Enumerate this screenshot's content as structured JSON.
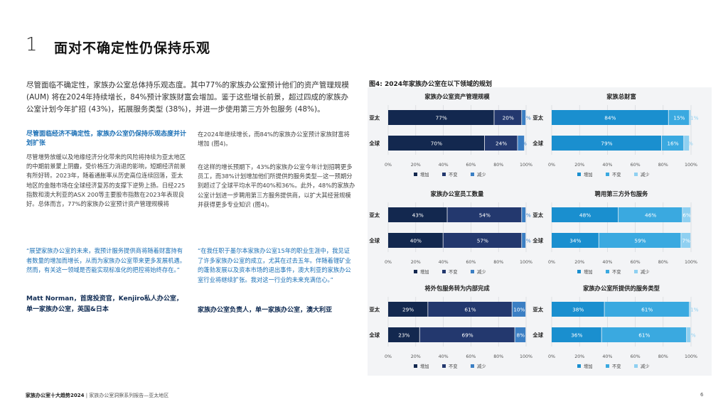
{
  "section_number": "1",
  "title": "面对不确定性仍保持乐观",
  "intro": "尽管面临不确定性，家族办公室总体持乐观态度。其中77%的家族办公室预计他们的资产管理规模 (AUM) 将在2024年持续增长，84%预计家族财富会增加。鉴于这些增长前景，超过四成的家族办公室计划今年扩招 (43%)，拓展服务类型 (38%)，并进一步使用第三方外包服务 (48%)。",
  "left_col": {
    "heading": "尽管面临经济不确定性，家族办公室仍保持乐观态度并计划扩张",
    "body": "尽管增势放缓以及地缘经济分化带来的风险将持续为亚太地区的中期前景蒙上阴霾，受价格压力消退的影响，短期经济前景有所好转。2023年，随着通胀率从历史高位连续回落，亚太地区的金融市场在全球经济复苏的支撑下逆势上扬。日经225指数和澳大利亚的ASX 200等主要股市指数在2023年表现良好。总体而言，77%的家族办公室预计资产管理规模将",
    "quote": "“展望家族办公室的未来，我预计服务提供商将随着财富持有者数量的增加而增长，从而为家族办公室带来更多发展机遇。然而，有关这一领域是否能实现标准化的把控将始终存在。”",
    "attribution": "Matt Norman，首席投资官，Kenjiro私人办公室，单一家族办公室，英国&日本"
  },
  "mid_col": {
    "para1": "在2024年继续增长，而84%的家族办公室预计家族财富将增加 (图4)。",
    "para2": "在这样的增长预期下，43%的家族办公室今年计划招聘更多员工，而38%计划增加他们所提供的服务类型—这一预期分别超过了全球平均水平的40%和36%。此外，48%的家族办公室计划进一步聘用第三方服务提供商，以扩大其经营规模并获得更多专业知识 (图4)。",
    "quote": "“在我任职于墨尔本家族办公室15年的职业生涯中，我见证了许多家族办公室的成立，尤其在过去五年。伴随着锂矿业的蓬勃发展以及资本市场的退出事件，澳大利亚的家族办公室行业将继续扩张。我对这一行业的未来充满信心。”",
    "attribution": "家族办公室负责人，单一家族办公室，澳大利亚"
  },
  "figure_title": "图4:   2024年家族办公室在以下领域的规划",
  "colors": {
    "dark_increase": "#13284f",
    "dark_nochange": "#23386e",
    "dark_decrease": "#3b7fc4",
    "light_increase": "#1a8fcf",
    "light_nochange": "#3aa9e0",
    "light_decrease": "#8fd0f1",
    "accent": "#1a6fb5"
  },
  "chart_data": [
    {
      "type": "bar",
      "stacked": true,
      "orientation": "horizontal",
      "title": "家族办公室资产管理规模",
      "palette": "dark",
      "categories": [
        "亚太",
        "全球"
      ],
      "legend": [
        "增加",
        "不变",
        "减少"
      ],
      "xlim": [
        0,
        100
      ],
      "xticks": [
        "0%",
        "20%",
        "40%",
        "60%",
        "80%",
        "100%"
      ],
      "series": [
        {
          "name": "增加",
          "values": [
            77,
            70
          ]
        },
        {
          "name": "不变",
          "values": [
            20,
            24
          ]
        },
        {
          "name": "减少",
          "values": [
            3,
            5
          ]
        }
      ]
    },
    {
      "type": "bar",
      "stacked": true,
      "orientation": "horizontal",
      "title": "家族总财富",
      "palette": "light",
      "categories": [
        "亚太",
        "全球"
      ],
      "legend": [
        "增加",
        "不变",
        "减少"
      ],
      "xlim": [
        0,
        100
      ],
      "xticks": [
        "0%",
        "20%",
        "40%",
        "60%",
        "80%",
        "100%"
      ],
      "series": [
        {
          "name": "增加",
          "values": [
            84,
            79
          ]
        },
        {
          "name": "不变",
          "values": [
            15,
            16
          ]
        },
        {
          "name": "减少",
          "values": [
            1,
            4
          ]
        }
      ]
    },
    {
      "type": "bar",
      "stacked": true,
      "orientation": "horizontal",
      "title": "家族办公室员工数量",
      "palette": "dark",
      "categories": [
        "亚太",
        "全球"
      ],
      "legend": [
        "增加",
        "不变",
        "减少"
      ],
      "xlim": [
        0,
        100
      ],
      "xticks": [
        "0%",
        "20%",
        "40%",
        "60%",
        "80%",
        "100%"
      ],
      "series": [
        {
          "name": "增加",
          "values": [
            43,
            40
          ]
        },
        {
          "name": "不变",
          "values": [
            54,
            57
          ]
        },
        {
          "name": "减少",
          "values": [
            3,
            3
          ]
        }
      ]
    },
    {
      "type": "bar",
      "stacked": true,
      "orientation": "horizontal",
      "title": "聘用第三方外包服务",
      "palette": "light",
      "categories": [
        "亚太",
        "全球"
      ],
      "legend": [
        "增加",
        "不变",
        "减少"
      ],
      "xlim": [
        0,
        100
      ],
      "xticks": [
        "0%",
        "20%",
        "40%",
        "60%",
        "80%",
        "100%"
      ],
      "series": [
        {
          "name": "增加",
          "values": [
            48,
            34
          ]
        },
        {
          "name": "不变",
          "values": [
            46,
            59
          ]
        },
        {
          "name": "减少",
          "values": [
            6,
            7
          ]
        }
      ]
    },
    {
      "type": "bar",
      "stacked": true,
      "orientation": "horizontal",
      "title": "将外包服务转为内部完成",
      "palette": "dark",
      "categories": [
        "亚太",
        "全球"
      ],
      "legend": [
        "增加",
        "不变",
        "减少"
      ],
      "xlim": [
        0,
        100
      ],
      "xticks": [
        "0%",
        "20%",
        "40%",
        "60%",
        "80%",
        "100%"
      ],
      "series": [
        {
          "name": "增加",
          "values": [
            29,
            23
          ]
        },
        {
          "name": "不变",
          "values": [
            61,
            69
          ]
        },
        {
          "name": "减少",
          "values": [
            10,
            8
          ]
        }
      ]
    },
    {
      "type": "bar",
      "stacked": true,
      "orientation": "horizontal",
      "title": "家族办公室所提供的服务类型",
      "palette": "light",
      "categories": [
        "亚太",
        "全球"
      ],
      "legend": [
        "增加",
        "不变",
        "减少"
      ],
      "xlim": [
        0,
        100
      ],
      "xticks": [
        "0%",
        "20%",
        "40%",
        "60%",
        "80%",
        "100%"
      ],
      "series": [
        {
          "name": "增加",
          "values": [
            38,
            36
          ]
        },
        {
          "name": "不变",
          "values": [
            61,
            61
          ]
        },
        {
          "name": "减少",
          "values": [
            1,
            3
          ]
        }
      ]
    }
  ],
  "footer": {
    "report": "家族办公室十大趋势2024",
    "separator": " | ",
    "subtitle": "家族办公室洞察系列报告—亚太地区"
  },
  "page_number": "6"
}
